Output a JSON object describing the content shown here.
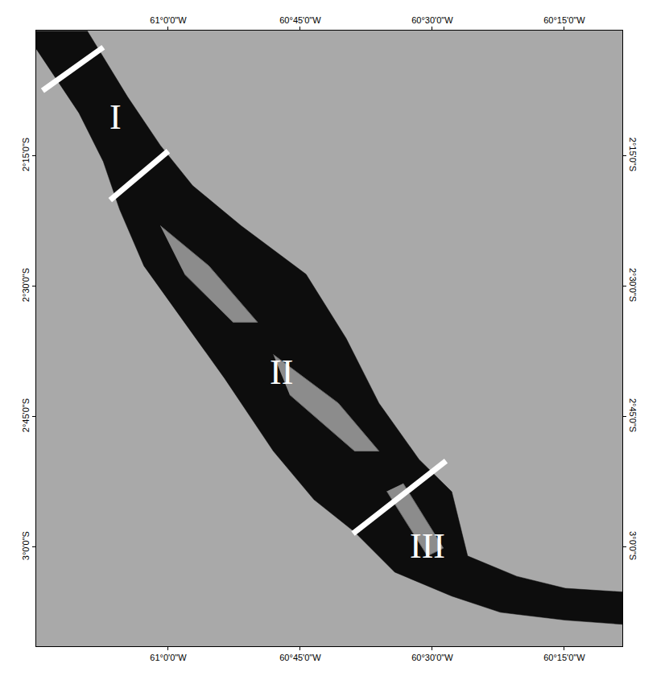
{
  "chart_data": {
    "type": "map",
    "xlim": [
      -61.25,
      -60.14
    ],
    "ylim": [
      -3.19,
      -2.01
    ],
    "xticks": [
      {
        "value": -61,
        "label": "61°0'0\"W"
      },
      {
        "value": -60.75,
        "label": "60°45'0\"W"
      },
      {
        "value": -60.5,
        "label": "60°30'0\"W"
      },
      {
        "value": -60.25,
        "label": "60°15'0\"W"
      }
    ],
    "yticks": [
      {
        "value": -2.25,
        "label": "2°15'0\"S"
      },
      {
        "value": -2.5,
        "label": "2°30'0\"S"
      },
      {
        "value": -2.75,
        "label": "2°45'0\"S"
      },
      {
        "value": -3,
        "label": "3°0'0\"S"
      }
    ],
    "grid": false,
    "river": {
      "lon": [
        -61.25,
        -61.169,
        -61.123,
        -61.092,
        -61.046,
        -60.969,
        -60.893,
        -60.801,
        -60.724,
        -60.647,
        -60.571,
        -60.463,
        -60.371,
        -60.248,
        -60.14,
        -60.14,
        -60.248,
        -60.34,
        -60.433,
        -60.463,
        -60.525,
        -60.601,
        -60.663,
        -60.739,
        -60.862,
        -60.954,
        -61.015,
        -61.077,
        -61.123,
        -61.153,
        -61.25
      ],
      "lat": [
        -2.045,
        -2.168,
        -2.261,
        -2.353,
        -2.461,
        -2.569,
        -2.677,
        -2.816,
        -2.909,
        -2.971,
        -3.048,
        -3.094,
        -3.125,
        -3.14,
        -3.148,
        -3.086,
        -3.079,
        -3.056,
        -3.017,
        -2.894,
        -2.832,
        -2.724,
        -2.6,
        -2.477,
        -2.384,
        -2.307,
        -2.23,
        -2.137,
        -2.06,
        -2.011,
        -2.011
      ]
    },
    "islands": [
      {
        "lon": [
          -61.015,
          -60.923,
          -60.831,
          -60.877,
          -60.969
        ],
        "lat": [
          -2.384,
          -2.461,
          -2.569,
          -2.569,
          -2.477
        ]
      },
      {
        "lon": [
          -60.801,
          -60.678,
          -60.601,
          -60.647,
          -60.77
        ],
        "lat": [
          -2.631,
          -2.724,
          -2.816,
          -2.816,
          -2.708
        ]
      },
      {
        "lon": [
          -60.555,
          -60.479,
          -60.509,
          -60.586
        ],
        "lat": [
          -2.878,
          -3.002,
          -3.017,
          -2.893
        ]
      }
    ],
    "sections": [
      {
        "lon": [
          -61.238,
          -61.123
        ],
        "lat": [
          -2.125,
          -2.042
        ]
      },
      {
        "lon": [
          -61.11,
          -61.0
        ],
        "lat": [
          -2.335,
          -2.241
        ]
      },
      {
        "lon": [
          -60.65,
          -60.474
        ],
        "lat": [
          -2.974,
          -2.835
        ]
      }
    ],
    "labels": [
      {
        "text": "I",
        "lon": -61.1,
        "lat": -2.176
      },
      {
        "text": "II",
        "lon": -60.785,
        "lat": -2.665
      },
      {
        "text": "III",
        "lon": -60.509,
        "lat": -2.998
      }
    ]
  }
}
